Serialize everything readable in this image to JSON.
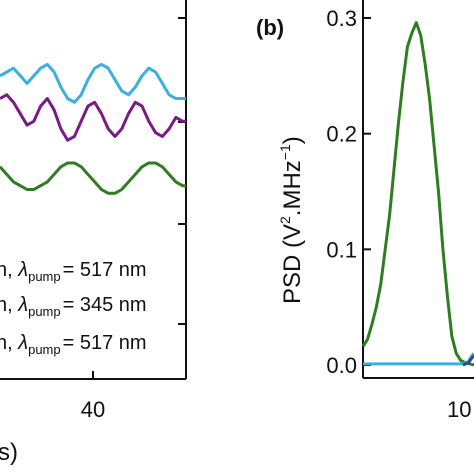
{
  "chart_data": [
    {
      "type": "line",
      "panel_label": "",
      "xlabel": "s)",
      "ylabel": "",
      "x_ticks": [
        "40"
      ],
      "xlim": [
        0,
        55
      ],
      "ylim": [
        0,
        1
      ],
      "series": [
        {
          "color": "#3ab0dd",
          "x": [
            0,
            2,
            4,
            6,
            8,
            10,
            12,
            14,
            16,
            18,
            20,
            22,
            24,
            26,
            28,
            30,
            32,
            34,
            36,
            38,
            40,
            42,
            44,
            46,
            48,
            50,
            52,
            54,
            55
          ],
          "y": [
            0.8,
            0.81,
            0.82,
            0.8,
            0.78,
            0.8,
            0.82,
            0.83,
            0.81,
            0.77,
            0.74,
            0.73,
            0.75,
            0.79,
            0.82,
            0.83,
            0.82,
            0.79,
            0.76,
            0.75,
            0.77,
            0.8,
            0.82,
            0.81,
            0.78,
            0.75,
            0.74,
            0.74,
            0.74
          ]
        },
        {
          "color": "#7a1a86",
          "x": [
            0,
            2,
            4,
            6,
            8,
            10,
            12,
            14,
            16,
            18,
            20,
            22,
            24,
            26,
            28,
            30,
            32,
            34,
            36,
            38,
            40,
            42,
            44,
            46,
            48,
            50,
            52,
            54,
            55
          ],
          "y": [
            0.74,
            0.75,
            0.73,
            0.7,
            0.67,
            0.68,
            0.72,
            0.74,
            0.71,
            0.66,
            0.63,
            0.64,
            0.68,
            0.72,
            0.73,
            0.7,
            0.66,
            0.64,
            0.66,
            0.7,
            0.73,
            0.72,
            0.68,
            0.65,
            0.64,
            0.66,
            0.69,
            0.68,
            0.68
          ]
        },
        {
          "color": "#2e7d1f",
          "x": [
            0,
            2,
            4,
            6,
            8,
            10,
            12,
            14,
            16,
            18,
            20,
            22,
            24,
            26,
            28,
            30,
            32,
            34,
            36,
            38,
            40,
            42,
            44,
            46,
            48,
            50,
            52,
            54,
            55
          ],
          "y": [
            0.56,
            0.54,
            0.52,
            0.51,
            0.5,
            0.5,
            0.51,
            0.52,
            0.54,
            0.56,
            0.57,
            0.57,
            0.56,
            0.54,
            0.52,
            0.5,
            0.49,
            0.49,
            0.5,
            0.52,
            0.54,
            0.56,
            0.57,
            0.57,
            0.56,
            0.54,
            0.52,
            0.51,
            0.51
          ]
        }
      ],
      "legend": [
        {
          "prefix": "n, ",
          "sub": "pump",
          "value": "= 517 nm",
          "color": "#2e7d1f"
        },
        {
          "prefix": "n, ",
          "sub": "pump",
          "value": "= 345 nm",
          "color": "#7a1a86"
        },
        {
          "prefix": "n, ",
          "sub": "pump",
          "value": "= 517 nm",
          "color": "#3ab0dd"
        }
      ]
    },
    {
      "type": "line",
      "panel_label": "(b)",
      "ylabel": "PSD (V².MHz⁻¹)",
      "ylabel_parts": {
        "pre": "PSD (V",
        "sup1": "2",
        "mid": ".MHz",
        "sup2": "−1",
        "post": ")"
      },
      "y_ticks": [
        "0.0",
        "0.1",
        "0.2",
        "0.3"
      ],
      "y_tick_values": [
        0.0,
        0.1,
        0.2,
        0.3
      ],
      "x_tick_label": "10",
      "ylim": [
        -0.01,
        0.3
      ],
      "xlim": [
        0,
        10
      ],
      "series": [
        {
          "color": "#2e7d1f",
          "x": [
            0,
            0.4,
            0.8,
            1.2,
            1.6,
            2.0,
            2.4,
            2.8,
            3.2,
            3.6,
            4.0,
            4.4,
            4.8,
            5.2,
            5.6,
            6.0,
            6.4,
            6.8,
            7.2,
            7.6,
            8.0,
            8.4,
            8.8,
            9.2,
            9.6,
            10
          ],
          "y": [
            0.016,
            0.022,
            0.035,
            0.05,
            0.07,
            0.1,
            0.13,
            0.17,
            0.21,
            0.245,
            0.275,
            0.287,
            0.296,
            0.285,
            0.26,
            0.23,
            0.19,
            0.15,
            0.1,
            0.06,
            0.025,
            0.01,
            0.004,
            0.002,
            0.001,
            0.0
          ]
        },
        {
          "color": "#3ab0dd",
          "x": [
            0,
            1,
            2,
            3,
            4,
            5,
            6,
            7,
            8,
            9,
            9.5,
            9.8,
            10
          ],
          "y": [
            0.001,
            0.001,
            0.001,
            0.001,
            0.001,
            0.001,
            0.001,
            0.001,
            0.001,
            0.001,
            0.003,
            0.008,
            0.01
          ]
        },
        {
          "color": "#2a4b8a",
          "x": [
            9.0,
            9.5,
            9.8,
            10
          ],
          "y": [
            0.0,
            0.002,
            0.006,
            0.008
          ]
        }
      ]
    }
  ]
}
